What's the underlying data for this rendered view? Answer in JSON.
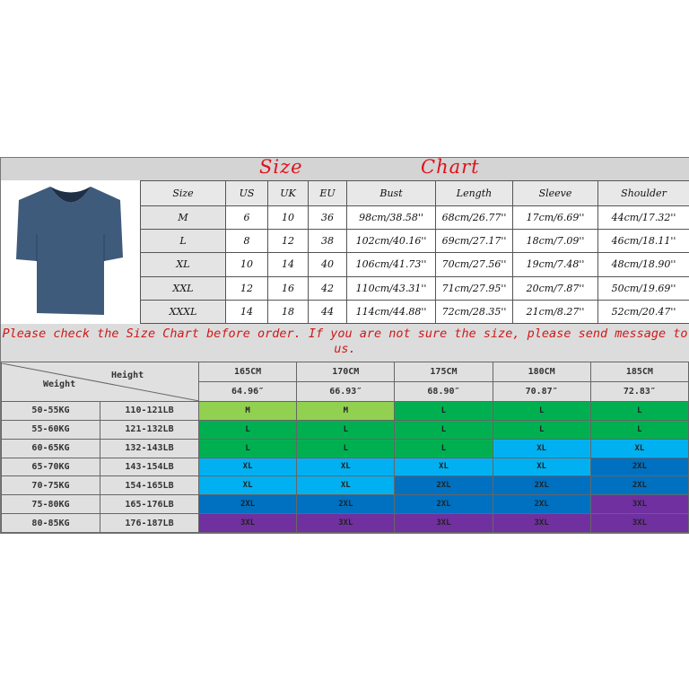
{
  "title": {
    "left": "Size",
    "right": "Chart"
  },
  "size_table": {
    "headers": [
      "Size",
      "US",
      "UK",
      "EU",
      "Bust",
      "Length",
      "Sleeve",
      "Shoulder"
    ],
    "rows": [
      [
        "M",
        "6",
        "10",
        "36",
        "98cm/38.58''",
        "68cm/26.77''",
        "17cm/6.69''",
        "44cm/17.32''"
      ],
      [
        "L",
        "8",
        "12",
        "38",
        "102cm/40.16''",
        "69cm/27.17''",
        "18cm/7.09''",
        "46cm/18.11''"
      ],
      [
        "XL",
        "10",
        "14",
        "40",
        "106cm/41.73''",
        "70cm/27.56''",
        "19cm/7.48''",
        "48cm/18.90''"
      ],
      [
        "XXL",
        "12",
        "16",
        "42",
        "110cm/43.31''",
        "71cm/27.95''",
        "20cm/7.87''",
        "50cm/19.69''"
      ],
      [
        "XXXL",
        "14",
        "18",
        "44",
        "114cm/44.88''",
        "72cm/28.35''",
        "21cm/8.27''",
        "52cm/20.47''"
      ]
    ]
  },
  "notice": "Please check the Size Chart before order. If you are not sure the size, please send message to us.",
  "fit_table": {
    "height_label": "Height",
    "weight_label": "Weight",
    "heights_cm": [
      "165CM",
      "170CM",
      "175CM",
      "180CM",
      "185CM"
    ],
    "heights_in": [
      "64.96″",
      "66.93″",
      "68.90″",
      "70.87″",
      "72.83″"
    ],
    "rows": [
      {
        "kg": "50-55KG",
        "lb": "110-121LB",
        "sizes": [
          "M",
          "M",
          "L",
          "L",
          "L"
        ]
      },
      {
        "kg": "55-60KG",
        "lb": "121-132LB",
        "sizes": [
          "L",
          "L",
          "L",
          "L",
          "L"
        ]
      },
      {
        "kg": "60-65KG",
        "lb": "132-143LB",
        "sizes": [
          "L",
          "L",
          "L",
          "XL",
          "XL"
        ]
      },
      {
        "kg": "65-70KG",
        "lb": "143-154LB",
        "sizes": [
          "XL",
          "XL",
          "XL",
          "XL",
          "2XL"
        ]
      },
      {
        "kg": "70-75KG",
        "lb": "154-165LB",
        "sizes": [
          "XL",
          "XL",
          "2XL",
          "2XL",
          "2XL"
        ]
      },
      {
        "kg": "75-80KG",
        "lb": "165-176LB",
        "sizes": [
          "2XL",
          "2XL",
          "2XL",
          "2XL",
          "3XL"
        ]
      },
      {
        "kg": "80-85KG",
        "lb": "176-187LB",
        "sizes": [
          "3XL",
          "3XL",
          "3XL",
          "3XL",
          "3XL"
        ]
      }
    ],
    "size_colors": {
      "M": "#92d050",
      "L": "#00b050",
      "XL": "#00b0f0",
      "2XL": "#0070c0",
      "3XL": "#7030a0"
    }
  },
  "product_image": {
    "icon": "v-neck-tshirt",
    "color": "#3f5b7c"
  }
}
